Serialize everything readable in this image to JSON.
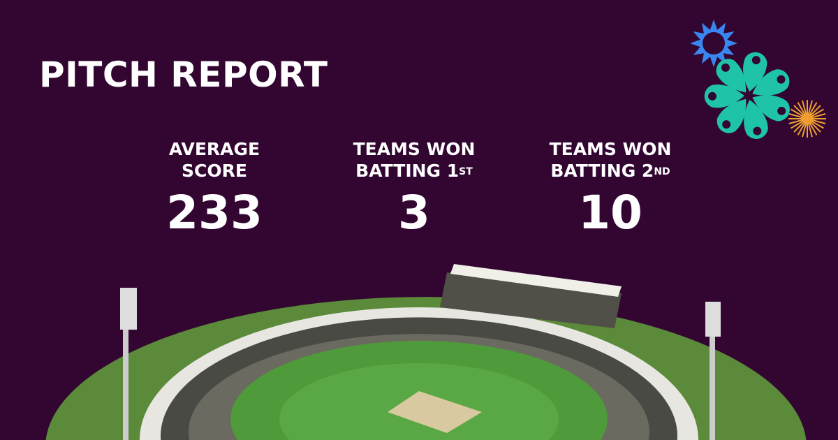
{
  "title": "PITCH REPORT",
  "stats": [
    {
      "label_line1": "AVERAGE",
      "label_line2": "SCORE",
      "label_sup": "",
      "value": "233"
    },
    {
      "label_line1": "TEAMS WON",
      "label_line2": "BATTING 1",
      "label_sup": "ST",
      "value": "3"
    },
    {
      "label_line1": "TEAMS WON",
      "label_line2": "BATTING 2",
      "label_sup": "ND",
      "value": "10"
    }
  ],
  "colors": {
    "background": "#320631",
    "flower": "#1fc4a8",
    "sun": "#3a86f0",
    "burst": "#f0a030",
    "field": "#4f9a3a"
  }
}
